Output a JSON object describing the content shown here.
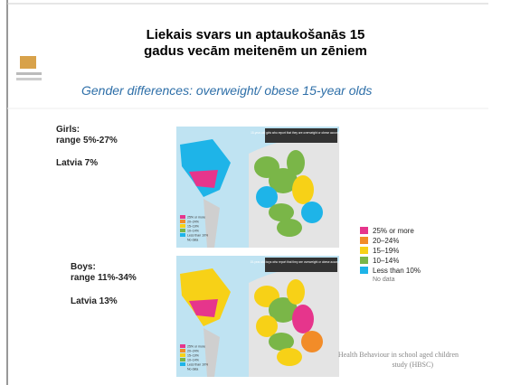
{
  "slide": {
    "title_line1": "Liekais svars un aptaukošanās 15",
    "title_line2": "gadus vecām meitenēm  un zēniem",
    "subtitle": "Gender differences: overweight/ obese 15-year olds",
    "girls": {
      "heading": "Girls:",
      "range": "range 5%-27%",
      "latvia": "Latvia 7%",
      "map_title": "15-year-old girls who report that they are overweight or obese according to BMI"
    },
    "boys": {
      "heading": "Boys:",
      "range": "range 11%-34%",
      "latvia": "Latvia 13%",
      "map_title": "15-year-old boys who report that they are overweight or obese according to BMI"
    },
    "legend": [
      {
        "label": "25% or more",
        "color": "#e6358c"
      },
      {
        "label": "20–24%",
        "color": "#f28c28"
      },
      {
        "label": "15–19%",
        "color": "#f7d117"
      },
      {
        "label": "10–14%",
        "color": "#7ab648"
      },
      {
        "label": "Less than 10%",
        "color": "#1eb4e8"
      },
      {
        "label": "No data",
        "color": null
      }
    ],
    "source_line1": "Health Behaviour in school aged children",
    "source_line2": "study (HBSC)"
  }
}
